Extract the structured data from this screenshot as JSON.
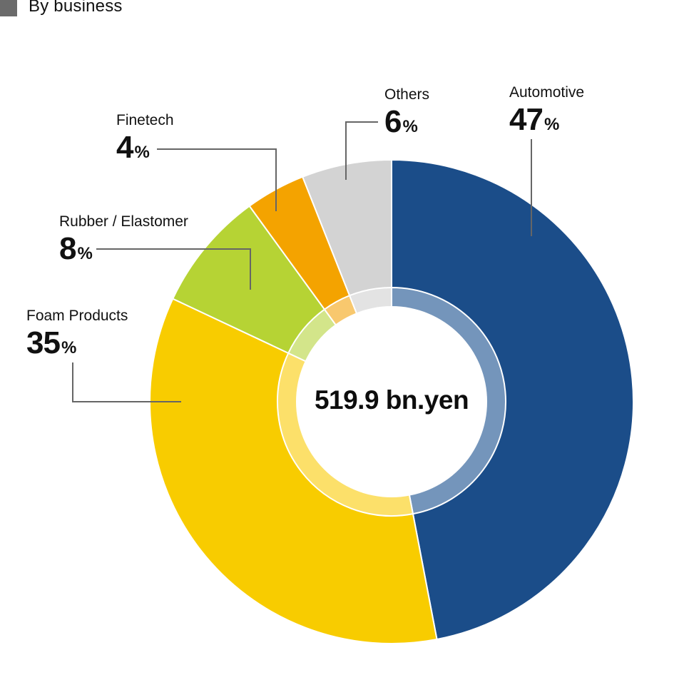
{
  "header": {
    "title": "By business",
    "swatch_color": "#6b6b6b"
  },
  "center": {
    "total": "519.9 bn.yen"
  },
  "chart_data": {
    "type": "pie",
    "variant": "donut",
    "title": "By business",
    "total_label": "519.9 bn.yen",
    "categories": [
      "Automotive",
      "Foam Products",
      "Rubber / Elastomer",
      "Finetech",
      "Others"
    ],
    "values": [
      47,
      35,
      8,
      4,
      6
    ],
    "unit": "%",
    "colors": [
      "#1b4d89",
      "#f8cc00",
      "#b6d334",
      "#f4a300",
      "#d3d3d3"
    ],
    "inner_ring_colors": [
      "#7495bb",
      "#fce06a",
      "#d3e58a",
      "#f8c86e",
      "#e3e3e3"
    ],
    "start_angle": "12 o'clock",
    "direction": "clockwise",
    "legend": "callout labels with leader lines"
  },
  "labels": [
    {
      "name": "Automotive",
      "value": "47",
      "sign": "%"
    },
    {
      "name": "Foam Products",
      "value": "35",
      "sign": "%"
    },
    {
      "name": "Rubber / Elastomer",
      "value": "8",
      "sign": "%"
    },
    {
      "name": "Finetech",
      "value": "4",
      "sign": "%"
    },
    {
      "name": "Others",
      "value": "6",
      "sign": "%"
    }
  ]
}
